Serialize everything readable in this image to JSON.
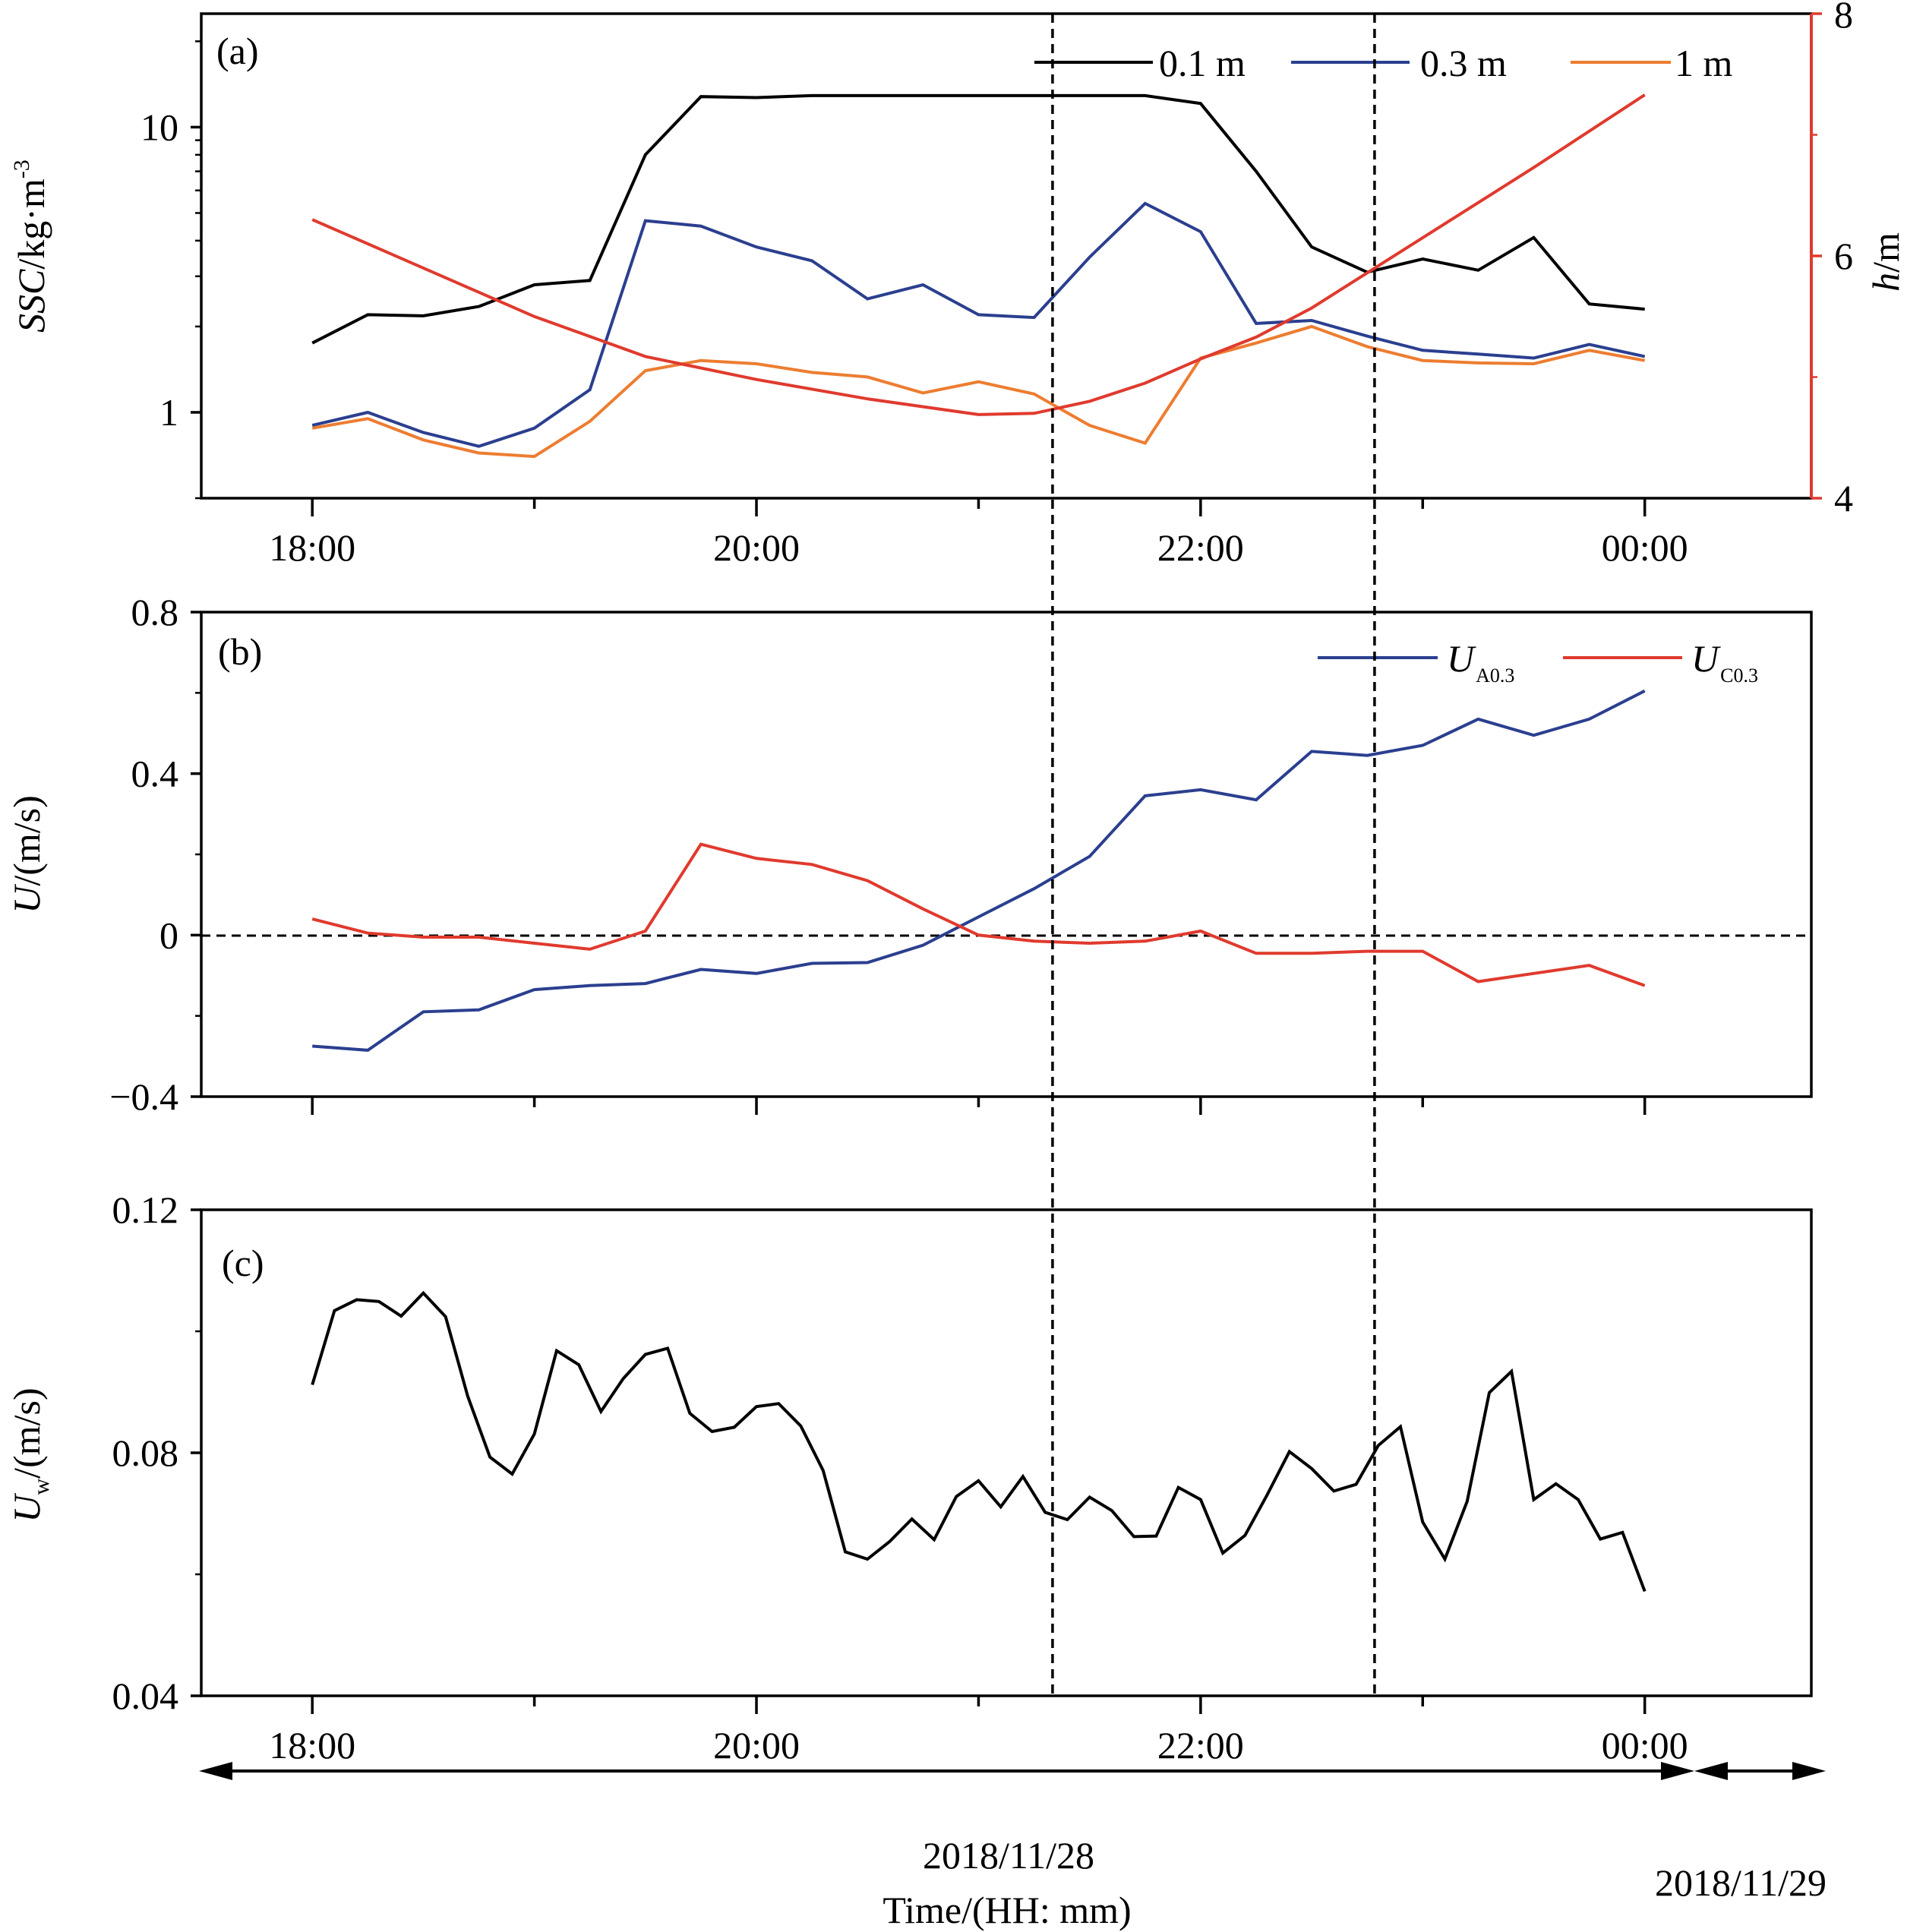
{
  "chart_data": [
    {
      "panel": "(a)",
      "type": "line",
      "ylabel_italic": "SSC",
      "ylabel_rest": "/kg·m",
      "ylabel_sup": "-3",
      "yscale": "log",
      "ylim": [
        0.5,
        25
      ],
      "yticks": [
        1,
        10
      ],
      "ytick_labels": [
        "1",
        "10"
      ],
      "y2label_italic": "h",
      "y2label_rest": "/m",
      "y2lim": [
        4,
        8
      ],
      "y2ticks": [
        4,
        6,
        8
      ],
      "y2tick_labels": [
        "4",
        "6",
        "8"
      ],
      "xlim": [
        "17:30",
        "00:45"
      ],
      "xticks": [
        "18:00",
        "20:00",
        "22:00",
        "00:00"
      ],
      "xtick_labels": [
        "18:00",
        "20:00",
        "22:00",
        "00:00"
      ],
      "series": [
        {
          "name": "0.1 m",
          "color": "#000000",
          "axis": "left",
          "x": [
            "18:00",
            "18:15",
            "18:30",
            "18:45",
            "19:00",
            "19:15",
            "19:30",
            "19:45",
            "20:00",
            "20:15",
            "20:30",
            "20:45",
            "21:00",
            "21:15",
            "21:30",
            "21:45",
            "22:00",
            "22:15",
            "22:30",
            "22:45",
            "23:00",
            "23:15",
            "23:30",
            "23:45",
            "00:00"
          ],
          "values": [
            1.75,
            2.2,
            2.18,
            2.35,
            2.8,
            2.9,
            8.0,
            12.8,
            12.7,
            12.9,
            12.9,
            12.9,
            12.9,
            12.9,
            12.9,
            12.9,
            12.1,
            7.0,
            3.8,
            3.1,
            3.45,
            3.15,
            4.1,
            2.4,
            2.3
          ]
        },
        {
          "name": "0.3 m",
          "color": "#2b3f8f",
          "axis": "left",
          "x": [
            "18:00",
            "18:15",
            "18:30",
            "18:45",
            "19:00",
            "19:15",
            "19:30",
            "19:45",
            "20:00",
            "20:15",
            "20:30",
            "20:45",
            "21:00",
            "21:15",
            "21:30",
            "21:45",
            "22:00",
            "22:15",
            "22:30",
            "22:45",
            "23:00",
            "23:15",
            "23:30",
            "23:45",
            "00:00"
          ],
          "values": [
            0.9,
            1.0,
            0.85,
            0.76,
            0.88,
            1.2,
            4.7,
            4.5,
            3.8,
            3.4,
            2.5,
            2.8,
            2.2,
            2.15,
            3.5,
            5.4,
            4.3,
            2.05,
            2.1,
            1.85,
            1.65,
            1.6,
            1.55,
            1.73,
            1.57
          ]
        },
        {
          "name": "1 m",
          "color": "#ed7d31",
          "axis": "left",
          "x": [
            "18:00",
            "18:15",
            "18:30",
            "18:45",
            "19:00",
            "19:15",
            "19:30",
            "19:45",
            "20:00",
            "20:15",
            "20:30",
            "20:45",
            "21:00",
            "21:15",
            "21:30",
            "21:45",
            "22:00",
            "22:15",
            "22:30",
            "22:45",
            "23:00",
            "23:15",
            "23:30",
            "23:45",
            "00:00"
          ],
          "values": [
            0.88,
            0.95,
            0.8,
            0.72,
            0.7,
            0.93,
            1.4,
            1.52,
            1.48,
            1.38,
            1.33,
            1.17,
            1.28,
            1.16,
            0.9,
            0.78,
            1.55,
            1.75,
            2.0,
            1.7,
            1.52,
            1.49,
            1.48,
            1.65,
            1.52
          ]
        },
        {
          "name": "h",
          "color": "#e03a2e",
          "axis": "right",
          "x": [
            "18:00",
            "18:30",
            "19:00",
            "19:30",
            "20:00",
            "20:30",
            "21:00",
            "21:15",
            "21:30",
            "21:45",
            "22:00",
            "22:15",
            "22:30",
            "22:45",
            "23:00",
            "23:30",
            "00:00"
          ],
          "values": [
            6.3,
            5.9,
            5.5,
            5.17,
            4.98,
            4.82,
            4.69,
            4.7,
            4.8,
            4.95,
            5.15,
            5.33,
            5.57,
            5.86,
            6.15,
            6.73,
            7.33
          ]
        }
      ]
    },
    {
      "panel": "(b)",
      "type": "line",
      "ylabel_italic": "U",
      "ylabel_rest": "/(m/s)",
      "ylim": [
        -0.4,
        0.8
      ],
      "yticks": [
        -0.4,
        0,
        0.4,
        0.8
      ],
      "ytick_labels": [
        "−0.4",
        "0",
        "0.4",
        "0.8"
      ],
      "xlim": [
        "17:30",
        "00:45"
      ],
      "zero_line": "dashed",
      "series": [
        {
          "name_italic": "U",
          "name_sub": "A0.3",
          "color": "#2b3f8f",
          "x": [
            "18:00",
            "18:15",
            "18:30",
            "18:45",
            "19:00",
            "19:15",
            "19:30",
            "19:45",
            "20:00",
            "20:15",
            "20:30",
            "20:45",
            "21:00",
            "21:15",
            "21:30",
            "21:45",
            "22:00",
            "22:15",
            "22:30",
            "22:45",
            "23:00",
            "23:15",
            "23:30",
            "23:45",
            "00:00"
          ],
          "values": [
            -0.275,
            -0.285,
            -0.19,
            -0.185,
            -0.135,
            -0.125,
            -0.12,
            -0.085,
            -0.095,
            -0.07,
            -0.068,
            -0.025,
            0.045,
            0.115,
            0.195,
            0.345,
            0.36,
            0.335,
            0.455,
            0.445,
            0.47,
            0.535,
            0.495,
            0.535,
            0.605
          ]
        },
        {
          "name_italic": "U",
          "name_sub": "C0.3",
          "color": "#e03a2e",
          "x": [
            "18:00",
            "18:15",
            "18:30",
            "18:45",
            "19:00",
            "19:15",
            "19:30",
            "19:45",
            "20:00",
            "20:15",
            "20:30",
            "20:45",
            "21:00",
            "21:15",
            "21:30",
            "21:45",
            "22:00",
            "22:15",
            "22:30",
            "22:45",
            "23:00",
            "23:15",
            "23:30",
            "23:45",
            "00:00"
          ],
          "values": [
            0.04,
            0.005,
            -0.005,
            -0.005,
            -0.02,
            -0.035,
            0.01,
            0.225,
            0.19,
            0.175,
            0.135,
            0.065,
            0.0,
            -0.015,
            -0.02,
            -0.015,
            0.01,
            -0.045,
            -0.045,
            -0.04,
            -0.04,
            -0.115,
            -0.095,
            -0.075,
            -0.125
          ]
        }
      ]
    },
    {
      "panel": "(c)",
      "type": "line",
      "ylabel_italic": "U",
      "ylabel_sub": "w",
      "ylabel_rest": "/(m/s)",
      "ylim": [
        0.04,
        0.12
      ],
      "yticks": [
        0.04,
        0.08,
        0.12
      ],
      "ytick_labels": [
        "0.04",
        "0.08",
        "0.12"
      ],
      "xlim": [
        "17:30",
        "00:45"
      ],
      "xticks": [
        "18:00",
        "20:00",
        "22:00",
        "00:00"
      ],
      "xtick_labels": [
        "18:00",
        "20:00",
        "22:00",
        "00:00"
      ],
      "xlabel": "Time/(HH: mm)",
      "series": [
        {
          "color": "#000000",
          "x_start": "18:00",
          "x_step_min": 6,
          "values": [
            0.0912,
            0.1034,
            0.1052,
            0.1049,
            0.1025,
            0.1063,
            0.1024,
            0.0893,
            0.0793,
            0.0765,
            0.0831,
            0.0968,
            0.0945,
            0.0868,
            0.0922,
            0.0962,
            0.0972,
            0.0865,
            0.0835,
            0.0842,
            0.0876,
            0.0881,
            0.0844,
            0.0771,
            0.0637,
            0.0625,
            0.0654,
            0.0691,
            0.0657,
            0.0728,
            0.0754,
            0.0711,
            0.0761,
            0.0702,
            0.069,
            0.0727,
            0.0705,
            0.0662,
            0.0663,
            0.0743,
            0.0723,
            0.0635,
            0.0664,
            0.0731,
            0.0802,
            0.0774,
            0.0737,
            0.0748,
            0.0812,
            0.0843,
            0.0686,
            0.0625,
            0.072,
            0.0899,
            0.0934,
            0.0723,
            0.0749,
            0.0723,
            0.0658,
            0.0669,
            0.0572
          ]
        }
      ]
    }
  ],
  "event_lines": [
    "21:20",
    "22:47"
  ],
  "date_ranges": [
    {
      "label": "2018/11/28",
      "from": "17:30",
      "to": "00:00"
    },
    {
      "label": "2018/11/29",
      "from": "00:00",
      "to": "00:45"
    }
  ]
}
